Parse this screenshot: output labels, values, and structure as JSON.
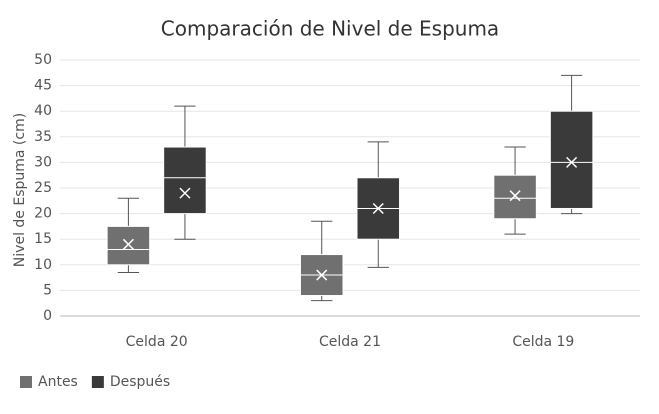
{
  "chart_data": {
    "type": "box",
    "title": "Comparación de Nivel de Espuma",
    "y_label": "Nivel de Espuma (cm)",
    "categories": [
      "Celda 20",
      "Celda 21",
      "Celda 19"
    ],
    "ylim": [
      0,
      50
    ],
    "yticks": [
      0,
      5,
      10,
      15,
      20,
      25,
      30,
      35,
      40,
      45,
      50
    ],
    "grid": true,
    "legend": "bottom-left",
    "series": [
      {
        "name": "Antes",
        "color": "#707070",
        "min": [
          8.5,
          3,
          16
        ],
        "q1": [
          10,
          4,
          19
        ],
        "median": [
          13,
          8,
          23
        ],
        "q3": [
          17.5,
          12,
          27.5
        ],
        "max": [
          23,
          18.5,
          33
        ],
        "mean": [
          14,
          8,
          23.5
        ]
      },
      {
        "name": "Después",
        "color": "#3a3a3a",
        "min": [
          15,
          9.5,
          20
        ],
        "q1": [
          20,
          15,
          21
        ],
        "median": [
          27,
          21,
          30
        ],
        "q3": [
          33,
          27,
          40
        ],
        "max": [
          41,
          34,
          47
        ],
        "mean": [
          24,
          21,
          30
        ]
      }
    ]
  }
}
